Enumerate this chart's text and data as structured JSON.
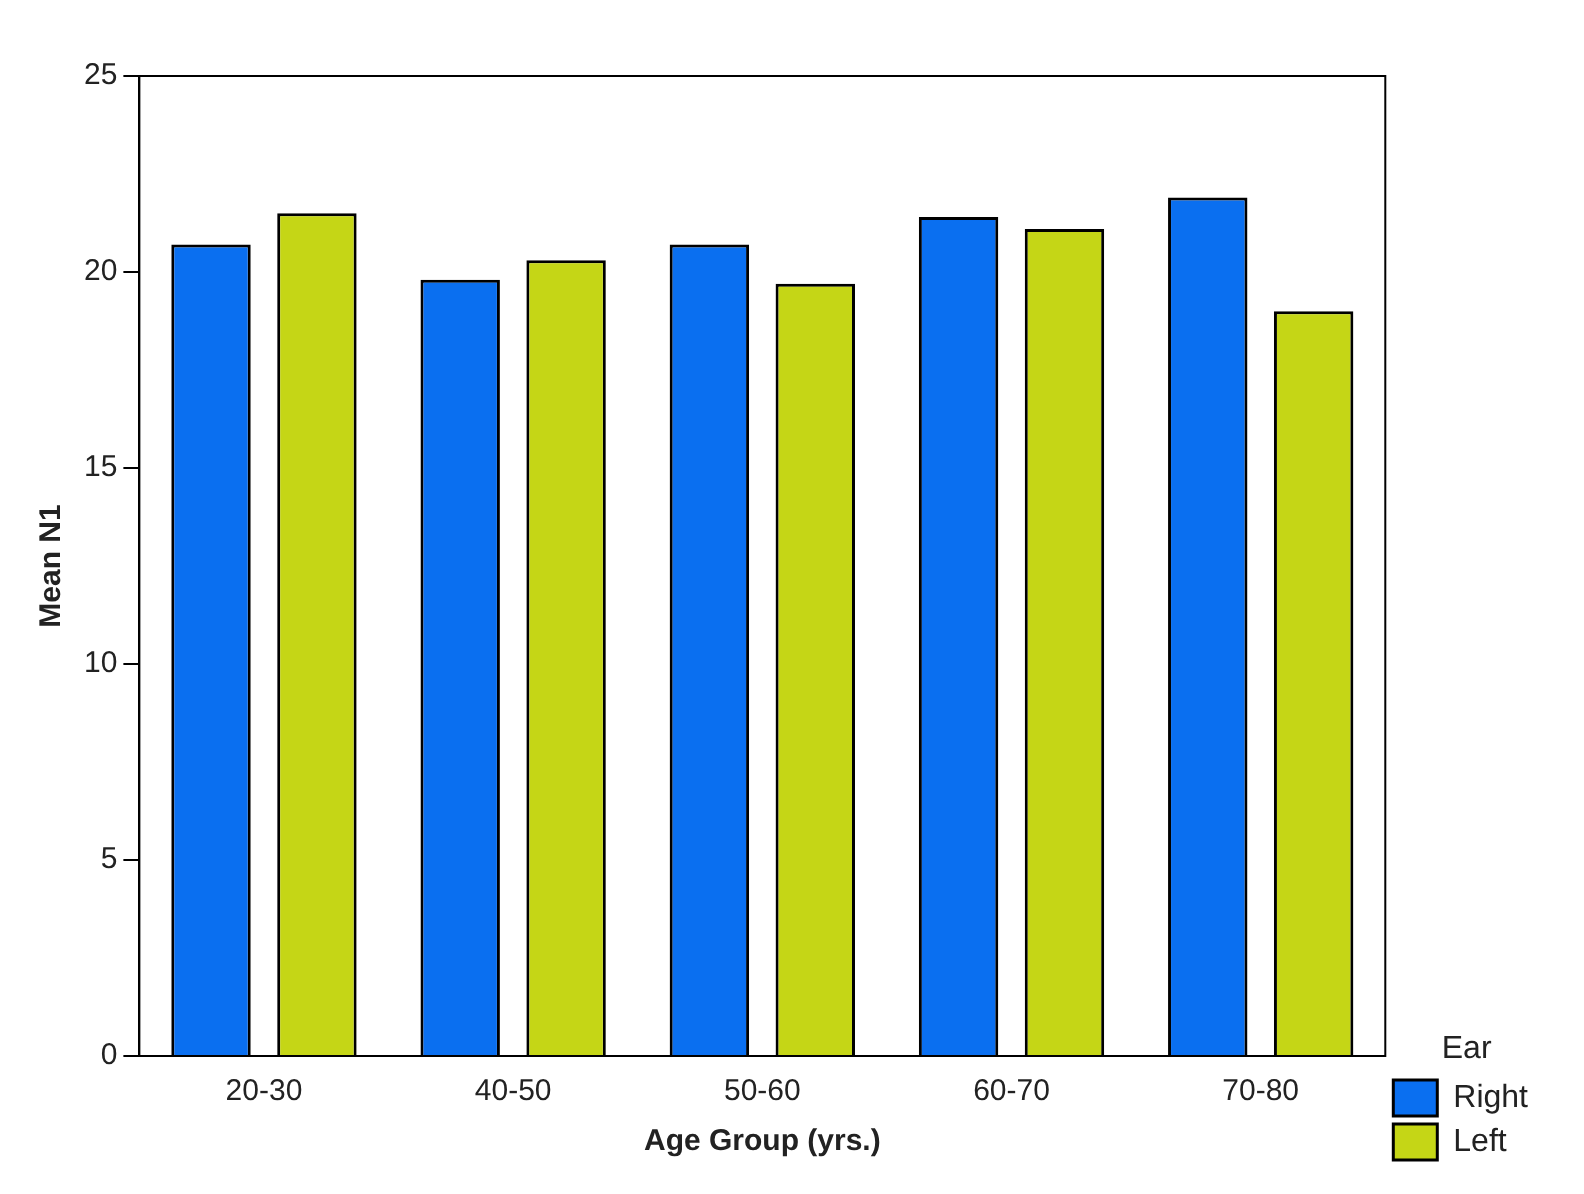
{
  "chart_data": {
    "type": "bar",
    "xlabel": "Age Group (yrs.)",
    "ylabel": "Mean N1",
    "legend_title": "Ear",
    "legend": "bottom right",
    "categories": [
      "20-30",
      "40-50",
      "50-60",
      "60-70",
      "70-80"
    ],
    "series": [
      {
        "name": "Right",
        "color": "#0a6ff0",
        "values": [
          20.7,
          19.8,
          20.7,
          21.4,
          21.9
        ]
      },
      {
        "name": "Left",
        "color": "#c5d616",
        "values": [
          21.5,
          20.3,
          19.7,
          21.1,
          19.0
        ]
      }
    ],
    "ylim": [
      0,
      25
    ],
    "yticks": [
      0,
      5,
      10,
      15,
      20,
      25
    ],
    "grid": false
  }
}
